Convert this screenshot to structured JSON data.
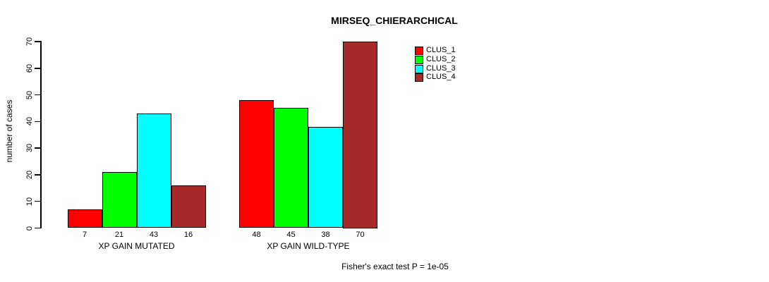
{
  "page": {
    "background": "#FFFFFF"
  },
  "chart_data": {
    "type": "bar",
    "title": "MIRSEQ_CHIERARCHICAL",
    "ylabel": "number of cases",
    "xlabel": "",
    "ylim": [
      0,
      70
    ],
    "yticks": [
      0,
      10,
      20,
      30,
      40,
      50,
      60,
      70
    ],
    "grid": false,
    "legend_position": "top-right",
    "categories": [
      "XP GAIN MUTATED",
      "XP GAIN WILD-TYPE"
    ],
    "series": [
      {
        "name": "CLUS_1",
        "color": "#FF0000",
        "values": [
          7,
          48
        ]
      },
      {
        "name": "CLUS_2",
        "color": "#00FF00",
        "values": [
          21,
          45
        ]
      },
      {
        "name": "CLUS_3",
        "color": "#00FFFF",
        "values": [
          43,
          38
        ]
      },
      {
        "name": "CLUS_4",
        "color": "#A52A2A",
        "values": [
          16,
          70
        ]
      }
    ],
    "bar_value_labels": [
      [
        7,
        21,
        43,
        16
      ],
      [
        48,
        45,
        38,
        70
      ]
    ],
    "annotation": "Fisher's exact test P = 1e-05"
  }
}
